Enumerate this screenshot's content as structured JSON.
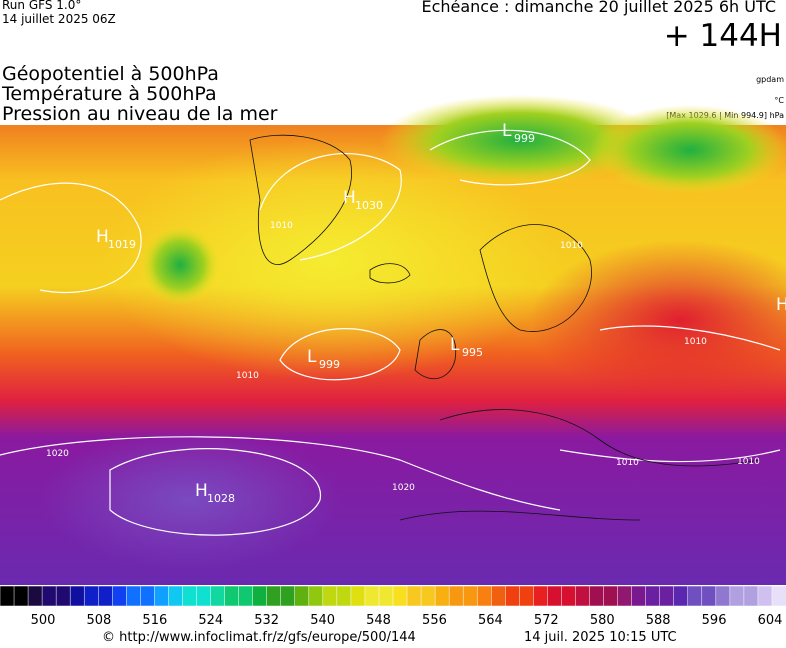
{
  "header": {
    "run": "Run GFS 1.0°",
    "date": "14 juillet 2025 06Z",
    "forecast": "Echéance : dimanche 20 juillet 2025 6h UTC",
    "lead": "+ 144H"
  },
  "titles": [
    "Géopotentiel à 500hPa",
    "Température à 500hPa",
    "Pression au niveau de la mer"
  ],
  "units": [
    "gpdam",
    "°C",
    "[Max 1029.6 | Min 994.9] hPa"
  ],
  "map_labels": [
    {
      "text": "H",
      "sub": "1019"
    },
    {
      "text": "H",
      "sub": "1030"
    },
    {
      "text": "L",
      "sub": "999"
    },
    {
      "text": "L",
      "sub": "999"
    },
    {
      "text": "L",
      "sub": "995"
    },
    {
      "text": "H",
      "sub": "1028"
    },
    {
      "text": "H",
      "sub": ""
    }
  ],
  "isobar_labels": [
    "1010",
    "1020",
    "1010",
    "1010",
    "1020",
    "1010",
    "1010",
    "1010"
  ],
  "colorbar": {
    "ticks": [
      500,
      508,
      516,
      524,
      532,
      540,
      548,
      556,
      564,
      572,
      580,
      588,
      596,
      604
    ]
  },
  "footer": {
    "url": "© http://www.infoclimat.fr/z/gfs/europe/500/144",
    "timestamp": "14 juil. 2025 10:15 UTC"
  }
}
